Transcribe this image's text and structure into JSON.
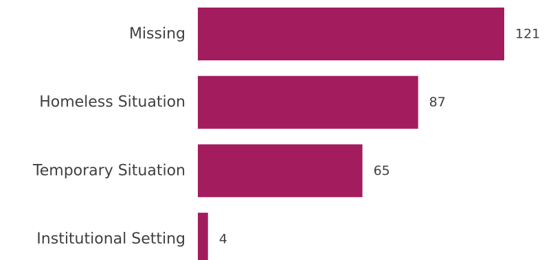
{
  "chart_data": {
    "type": "bar",
    "orientation": "horizontal",
    "categories": [
      "Missing",
      "Homeless Situation",
      "Temporary Situation",
      "Institutional Setting"
    ],
    "values": [
      121,
      87,
      65,
      4
    ],
    "title": "",
    "xlabel": "",
    "ylabel": "",
    "xlim": [
      0,
      121
    ],
    "grid": false,
    "legend": "none",
    "bar_color": "#a31c5e",
    "text_color": "#404040"
  }
}
